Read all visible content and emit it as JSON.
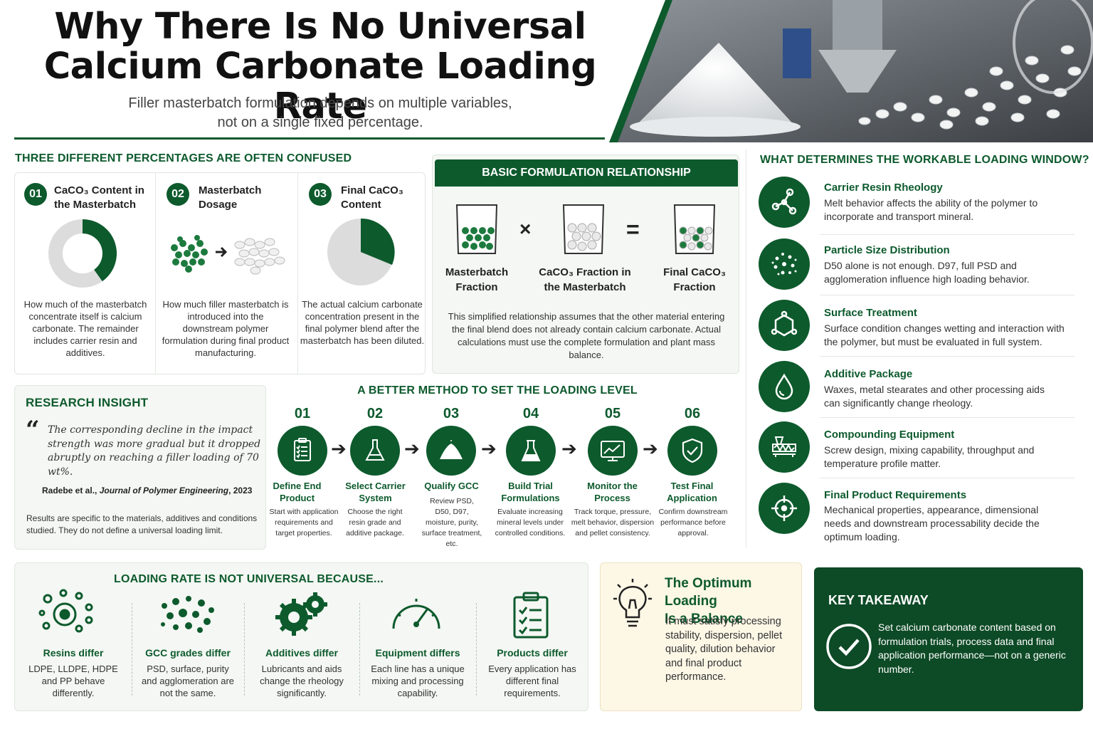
{
  "header": {
    "title_line1": "Why There Is No Universal",
    "title_line2": "Calcium Carbonate Loading Rate",
    "subtitle_line1": "Filler masterbatch formulation depends on multiple variables,",
    "subtitle_line2": "not on a single fixed percentage."
  },
  "percentages": {
    "section_title": "THREE DIFFERENT PERCENTAGES ARE OFTEN CONFUSED",
    "items": [
      {
        "num": "01",
        "title_line1": "CaCO₃ Content in",
        "title_line2": "the Masterbatch",
        "desc": "How much of the masterbatch concentrate itself is calcium carbonate. The remainder includes carrier resin and additives."
      },
      {
        "num": "02",
        "title_line1": "Masterbatch",
        "title_line2": "Dosage",
        "desc": "How much filler masterbatch is introduced into the downstream polymer formulation during final product manufacturing."
      },
      {
        "num": "03",
        "title_line1": "Final CaCO₃",
        "title_line2": "Content",
        "desc": "The actual calcium carbonate concentration present in the final polymer blend after the masterbatch has been diluted."
      }
    ]
  },
  "formula": {
    "title": "BASIC FORMULATION RELATIONSHIP",
    "operator_multiply": "×",
    "operator_equals": "=",
    "terms": [
      {
        "line1": "Masterbatch",
        "line2": "Fraction"
      },
      {
        "line1": "CaCO₃ Fraction in",
        "line2": "the Masterbatch"
      },
      {
        "line1": "Final CaCO₃",
        "line2": "Fraction"
      }
    ],
    "note": "This simplified relationship assumes that the other material entering the final blend does not already contain calcium carbonate. Actual calculations must use the complete formulation and plant mass balance."
  },
  "factors": {
    "section_title": "WHAT DETERMINES THE WORKABLE LOADING WINDOW?",
    "items": [
      {
        "icon": "molecule-icon",
        "title": "Carrier Resin Rheology",
        "desc": "Melt behavior affects the ability of the polymer to incorporate and transport mineral."
      },
      {
        "icon": "particles-icon",
        "title": "Particle Size Distribution",
        "desc": "D50 alone is not enough. D97, full PSD and agglomeration influence high loading behavior."
      },
      {
        "icon": "hexagon-molecule-icon",
        "title": "Surface Treatment",
        "desc": "Surface condition changes wetting and interaction with the polymer, but must be evaluated in full system."
      },
      {
        "icon": "droplet-icon",
        "title": "Additive Package",
        "desc": "Waxes, metal stearates and other processing aids can significantly change rheology."
      },
      {
        "icon": "extruder-icon",
        "title": "Compounding Equipment",
        "desc": "Screw design, mixing capability, throughput and temperature profile matter."
      },
      {
        "icon": "target-icon",
        "title": "Final Product Requirements",
        "desc": "Mechanical properties, appearance, dimensional needs and downstream processability decide the optimum loading."
      }
    ]
  },
  "research": {
    "title": "RESEARCH INSIGHT",
    "quote_mark": "“",
    "quote": "The corresponding decline in the impact strength was more gradual but it dropped abruptly on reaching a filler loading of 70 wt%.",
    "citation_authors": "Radebe et al., ",
    "citation_journal": "Journal of Polymer Engineering",
    "citation_year": ", 2023",
    "note": "Results are specific to the materials, additives and conditions studied. They do not define a universal loading limit."
  },
  "method": {
    "title": "A BETTER METHOD TO SET THE LOADING LEVEL",
    "steps": [
      {
        "num": "01",
        "icon": "checklist-icon",
        "title_line1": "Define End",
        "title_line2": "Product",
        "desc": "Start with application requirements and target properties."
      },
      {
        "num": "02",
        "icon": "flask-icon",
        "title_line1": "Select Carrier",
        "title_line2": "System",
        "desc": "Choose the right resin grade and additive package."
      },
      {
        "num": "03",
        "icon": "powder-pile-icon",
        "title_line1": "Qualify GCC",
        "title_line2": "",
        "desc": "Review PSD, D50, D97, moisture, purity, surface treatment, etc."
      },
      {
        "num": "04",
        "icon": "beaker-icon",
        "title_line1": "Build Trial",
        "title_line2": "Formulations",
        "desc": "Evaluate increasing mineral levels under controlled conditions."
      },
      {
        "num": "05",
        "icon": "monitor-chart-icon",
        "title_line1": "Monitor the",
        "title_line2": "Process",
        "desc": "Track torque, pressure, melt behavior, dispersion and pellet consistency."
      },
      {
        "num": "06",
        "icon": "shield-check-icon",
        "title_line1": "Test Final",
        "title_line2": "Application",
        "desc": "Confirm downstream performance before approval."
      }
    ]
  },
  "reasons": {
    "title": "LOADING RATE IS NOT UNIVERSAL BECAUSE...",
    "items": [
      {
        "icon": "resin-circles-icon",
        "title": "Resins differ",
        "desc": "LDPE, LLDPE, HDPE and PP behave differently."
      },
      {
        "icon": "dots-cluster-icon",
        "title": "GCC grades differ",
        "desc": "PSD, surface, purity and agglomeration are not the same."
      },
      {
        "icon": "gears-icon",
        "title": "Additives differ",
        "desc": "Lubricants and aids change the rheology significantly."
      },
      {
        "icon": "gauge-icon",
        "title": "Equipment differs",
        "desc": "Each line has a unique mixing and processing capability."
      },
      {
        "icon": "clipboard-icon",
        "title": "Products differ",
        "desc": "Every application has different final requirements."
      }
    ]
  },
  "balance": {
    "icon": "lightbulb-icon",
    "title_line1": "The Optimum Loading",
    "title_line2": "Is a Balance",
    "desc": "It must satisfy processing stability, dispersion, pellet quality, dilution behavior and final product performance."
  },
  "takeaway": {
    "title": "KEY TAKEAWAY",
    "icon": "check-circle-icon",
    "text": "Set calcium carbonate content based on formulation trials, process data and final application performance—not on a generic number."
  },
  "colors": {
    "brand_green": "#0d5a2d",
    "light_green_bg": "#f4f7f3",
    "cream_bg": "#fdf7e6"
  }
}
